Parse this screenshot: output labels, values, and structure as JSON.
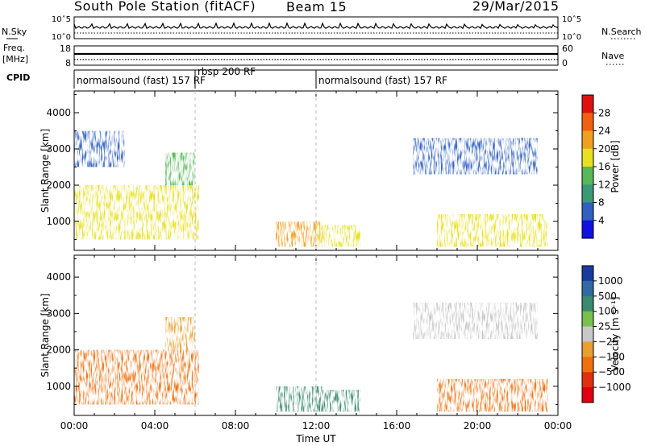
{
  "header": {
    "title": "South Pole Station (fitACF)",
    "beam": "Beam 15",
    "date": "29/Mar/2015"
  },
  "strips": {
    "nsky_label": "N.Sky",
    "nsearch_label": "N.Search",
    "nsky_ticks": [
      "10^5",
      "10^0"
    ],
    "nsearch_ticks": [
      "10^5",
      "10^0"
    ],
    "freq_label_1": "Freq.",
    "freq_label_2": "[MHz]",
    "freq_ticks": [
      "18",
      "8"
    ],
    "nave_label": "Nave",
    "nave_ticks": [
      "60",
      "0"
    ],
    "cpid_label": "CPID",
    "cpid_segments": [
      {
        "start": 0,
        "end": 6,
        "label": "normalsound (fast) 157 RF"
      },
      {
        "start": 6,
        "end": 12,
        "label": "rbsp 200 RF"
      },
      {
        "start": 12,
        "end": 24,
        "label": "normalsound (fast) 157 RF"
      }
    ]
  },
  "chart_data": [
    {
      "type": "heatmap",
      "title": "",
      "xlabel": "Time UT",
      "ylabel": "Slant Range [km]",
      "x_ticks": [
        "00:00",
        "04:00",
        "08:00",
        "12:00",
        "16:00",
        "20:00",
        "00:00"
      ],
      "x_range_hours": [
        0,
        24
      ],
      "y_ticks": [
        1000,
        2000,
        3000,
        4000
      ],
      "ylim": [
        200,
        4600
      ],
      "colorbar": {
        "label": "Power [dB]",
        "ticks": [
          "4",
          "8",
          "12",
          "16",
          "20",
          "24",
          "28"
        ],
        "range": [
          0,
          30
        ]
      },
      "echo_regions": [
        {
          "t0": 0.0,
          "t1": 6.2,
          "r0": 500,
          "r1": 2000,
          "value": 18
        },
        {
          "t0": 0.0,
          "t1": 2.5,
          "r0": 2500,
          "r1": 3500,
          "value": 6
        },
        {
          "t0": 4.5,
          "t1": 6.0,
          "r0": 2000,
          "r1": 2900,
          "value": 14
        },
        {
          "t0": 10.0,
          "t1": 12.3,
          "r0": 300,
          "r1": 1000,
          "value": 22
        },
        {
          "t0": 12.0,
          "t1": 14.2,
          "r0": 300,
          "r1": 900,
          "value": 18
        },
        {
          "t0": 16.8,
          "t1": 23.0,
          "r0": 2300,
          "r1": 3300,
          "value": 6
        },
        {
          "t0": 18.0,
          "t1": 23.5,
          "r0": 300,
          "r1": 1200,
          "value": 16
        }
      ]
    },
    {
      "type": "heatmap",
      "title": "",
      "xlabel": "Time UT",
      "ylabel": "Slant Range [km]",
      "x_ticks": [
        "00:00",
        "04:00",
        "08:00",
        "12:00",
        "16:00",
        "20:00",
        "00:00"
      ],
      "x_range_hours": [
        0,
        24
      ],
      "y_ticks": [
        1000,
        2000,
        3000,
        4000
      ],
      "ylim": [
        200,
        4600
      ],
      "colorbar": {
        "label": "Velocity [m s⁻¹]",
        "ticks": [
          "1000",
          "500",
          "100",
          "25",
          "−25",
          "−100",
          "−500",
          "−1000"
        ]
      },
      "echo_regions": [
        {
          "t0": 0.0,
          "t1": 6.2,
          "r0": 500,
          "r1": 2000,
          "value": -500
        },
        {
          "t0": 4.5,
          "t1": 6.0,
          "r0": 2000,
          "r1": 2900,
          "value": -50
        },
        {
          "t0": 10.0,
          "t1": 12.3,
          "r0": 300,
          "r1": 1000,
          "value": 300
        },
        {
          "t0": 12.0,
          "t1": 14.2,
          "r0": 300,
          "r1": 900,
          "value": 300
        },
        {
          "t0": 16.8,
          "t1": 23.0,
          "r0": 2300,
          "r1": 3300,
          "value": 0
        },
        {
          "t0": 18.0,
          "t1": 23.5,
          "r0": 300,
          "r1": 1200,
          "value": -400
        }
      ]
    }
  ],
  "colors": {
    "power_scale": [
      "#1010e0",
      "#3060c0",
      "#3a9a78",
      "#58b858",
      "#e8e020",
      "#f0a020",
      "#f06010",
      "#e01010"
    ],
    "velocity_scale": [
      "#1a3aa0",
      "#2f6aa0",
      "#3b8a70",
      "#78c050",
      "#c8c8c8",
      "#e8a030",
      "#f07010",
      "#e03010",
      "#e00010"
    ]
  }
}
